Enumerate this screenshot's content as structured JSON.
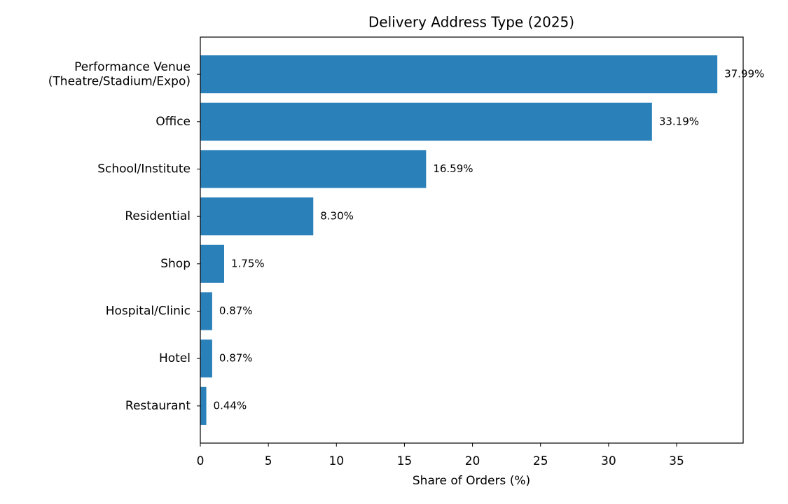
{
  "chart_data": {
    "type": "barh",
    "title": "Delivery Address Type (2025)",
    "x_label": "Share of Orders (%)",
    "categories": [
      "Performance Venue\n(Theatre/Stadium/Expo)",
      "Office",
      "School/Institute",
      "Residential",
      "Shop",
      "Hospital/Clinic",
      "Hotel",
      "Restaurant"
    ],
    "values": [
      37.99,
      33.19,
      16.59,
      8.3,
      1.75,
      0.87,
      0.87,
      0.44
    ],
    "value_labels": [
      "37.99%",
      "33.19%",
      "16.59%",
      "8.30%",
      "1.75%",
      "0.87%",
      "0.87%",
      "0.44%"
    ],
    "color": "#2a80b9",
    "xlim": [
      0,
      39.89
    ],
    "xticks": [
      0,
      5,
      10,
      15,
      20,
      25,
      30,
      35
    ]
  }
}
